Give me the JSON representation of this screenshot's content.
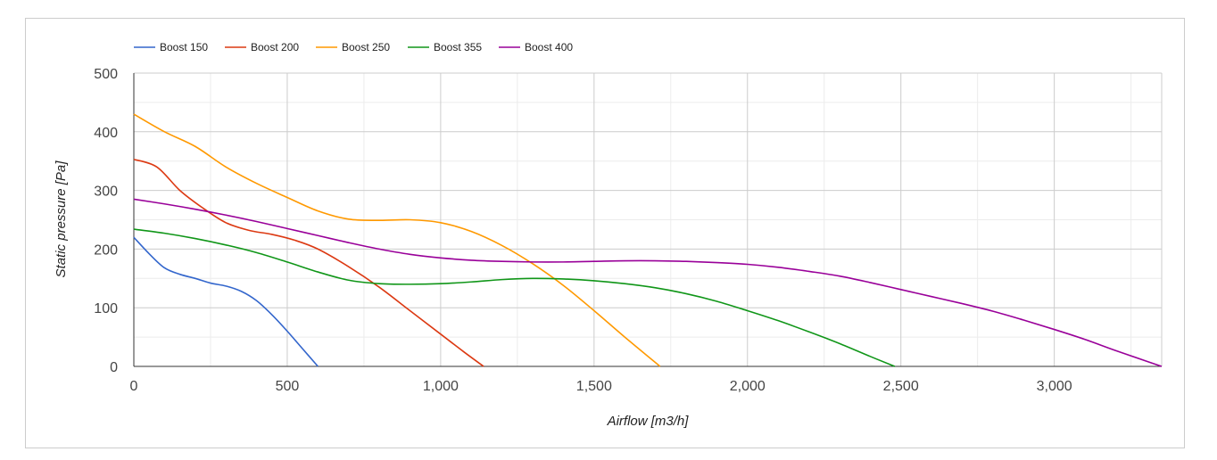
{
  "chart_data": {
    "type": "line",
    "xlabel": "Airflow [m3/h]",
    "ylabel": "Static pressure [Pa]",
    "xlim": [
      0,
      3350
    ],
    "ylim": [
      0,
      500
    ],
    "x_ticks": [
      "0",
      "500",
      "1,000",
      "1,500",
      "2,000",
      "2,500",
      "3,000"
    ],
    "y_ticks": [
      "0",
      "100",
      "200",
      "300",
      "400",
      "500"
    ],
    "grid": true,
    "legend_position": "top-left",
    "series": [
      {
        "name": "Boost 150",
        "color": "#3366cc",
        "x": [
          0,
          50,
          100,
          150,
          200,
          250,
          300,
          350,
          400,
          450,
          500,
          550,
          600
        ],
        "y": [
          220,
          192,
          168,
          157,
          150,
          142,
          137,
          128,
          112,
          88,
          60,
          30,
          0
        ]
      },
      {
        "name": "Boost 200",
        "color": "#dc3912",
        "x": [
          0,
          75,
          150,
          225,
          300,
          375,
          450,
          525,
          600,
          700,
          800,
          900,
          1000,
          1075,
          1140
        ],
        "y": [
          353,
          340,
          300,
          270,
          245,
          232,
          225,
          215,
          200,
          170,
          135,
          95,
          55,
          25,
          0
        ]
      },
      {
        "name": "Boost 250",
        "color": "#ff9900",
        "x": [
          0,
          100,
          200,
          300,
          400,
          500,
          600,
          700,
          800,
          900,
          1000,
          1100,
          1200,
          1300,
          1400,
          1500,
          1600,
          1715
        ],
        "y": [
          430,
          400,
          375,
          340,
          312,
          288,
          265,
          251,
          249,
          250,
          245,
          230,
          206,
          175,
          138,
          95,
          50,
          0
        ]
      },
      {
        "name": "Boost 355",
        "color": "#109618",
        "x": [
          0,
          100,
          200,
          300,
          400,
          500,
          600,
          700,
          800,
          900,
          1000,
          1100,
          1200,
          1300,
          1400,
          1500,
          1600,
          1700,
          1800,
          1900,
          2000,
          2100,
          2200,
          2300,
          2400,
          2480
        ],
        "y": [
          234,
          227,
          218,
          207,
          194,
          178,
          161,
          147,
          141,
          140,
          141,
          144,
          148,
          150,
          149,
          146,
          141,
          134,
          124,
          111,
          95,
          78,
          59,
          39,
          17,
          0
        ]
      },
      {
        "name": "Boost 400",
        "color": "#990099",
        "x": [
          0,
          100,
          200,
          300,
          400,
          500,
          600,
          700,
          800,
          900,
          1000,
          1100,
          1200,
          1300,
          1400,
          1500,
          1600,
          1700,
          1800,
          1900,
          2000,
          2100,
          2200,
          2300,
          2400,
          2500,
          2600,
          2700,
          2800,
          2900,
          3000,
          3100,
          3200,
          3300,
          3350
        ],
        "y": [
          285,
          277,
          268,
          258,
          247,
          235,
          223,
          211,
          200,
          191,
          185,
          181,
          179,
          178,
          178,
          179,
          180,
          180,
          179,
          177,
          174,
          169,
          162,
          154,
          143,
          131,
          119,
          107,
          94,
          79,
          63,
          46,
          27,
          9,
          0
        ]
      }
    ]
  }
}
